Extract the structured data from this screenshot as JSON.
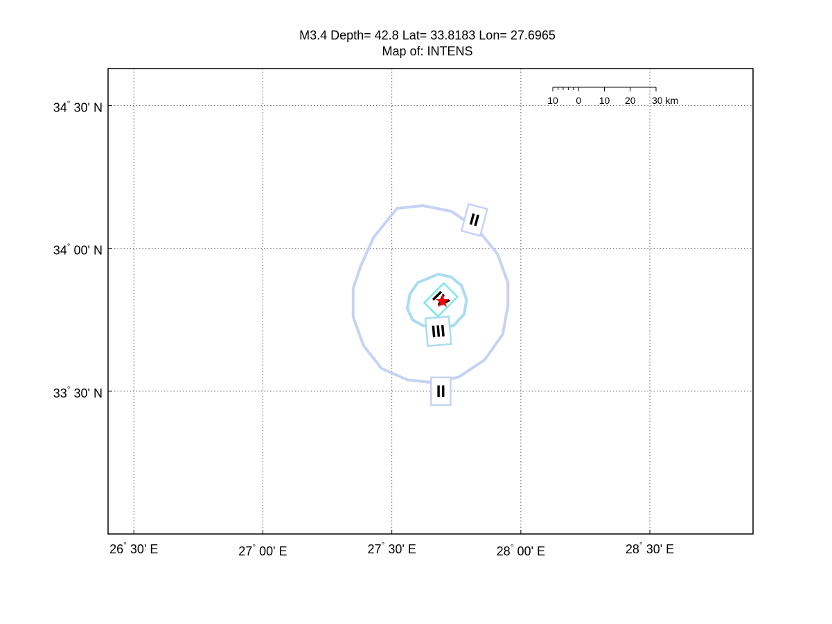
{
  "title": {
    "line1": "M3.4 Depth= 42.8 Lat= 33.8183 Lon= 27.6965",
    "line2": "Map of: INTENS"
  },
  "chart_data": {
    "type": "map",
    "event": {
      "magnitude": 3.4,
      "depth": 42.8,
      "lat": 33.8183,
      "lon": 27.6965
    },
    "xlim": [
      26.4,
      28.9
    ],
    "ylim": [
      33.0,
      34.63
    ],
    "grid": true,
    "x_ticks": [
      {
        "value": 26.5,
        "deg": "26",
        "min": "30",
        "hemi": "E"
      },
      {
        "value": 27.0,
        "deg": "27",
        "min": "00",
        "hemi": "E"
      },
      {
        "value": 27.5,
        "deg": "27",
        "min": "30",
        "hemi": "E"
      },
      {
        "value": 28.0,
        "deg": "28",
        "min": "00",
        "hemi": "E"
      },
      {
        "value": 28.5,
        "deg": "28",
        "min": "30",
        "hemi": "E"
      }
    ],
    "y_ticks": [
      {
        "value": 34.5,
        "deg": "34",
        "min": "30",
        "hemi": "N"
      },
      {
        "value": 34.0,
        "deg": "34",
        "min": "00",
        "hemi": "N"
      },
      {
        "value": 33.5,
        "deg": "33",
        "min": "30",
        "hemi": "N"
      }
    ],
    "contours": [
      {
        "intensity": "II",
        "color": "#c6d2f6",
        "points": [
          [
            27.52,
            34.14
          ],
          [
            27.62,
            34.15
          ],
          [
            27.73,
            34.13
          ],
          [
            27.83,
            34.07
          ],
          [
            27.91,
            33.98
          ],
          [
            27.95,
            33.88
          ],
          [
            27.95,
            33.8
          ],
          [
            27.93,
            33.7
          ],
          [
            27.86,
            33.61
          ],
          [
            27.76,
            33.55
          ],
          [
            27.66,
            33.53
          ],
          [
            27.56,
            33.54
          ],
          [
            27.46,
            33.58
          ],
          [
            27.39,
            33.66
          ],
          [
            27.35,
            33.76
          ],
          [
            27.35,
            33.86
          ],
          [
            27.38,
            33.94
          ],
          [
            27.43,
            34.04
          ]
        ]
      },
      {
        "intensity": "III",
        "color": "#a8dcf2",
        "points": [
          [
            27.68,
            33.91
          ],
          [
            27.73,
            33.9
          ],
          [
            27.77,
            33.87
          ],
          [
            27.79,
            33.82
          ],
          [
            27.78,
            33.77
          ],
          [
            27.74,
            33.73
          ],
          [
            27.68,
            33.72
          ],
          [
            27.62,
            33.73
          ],
          [
            27.58,
            33.75
          ],
          [
            27.56,
            33.79
          ],
          [
            27.57,
            33.84
          ],
          [
            27.6,
            33.88
          ]
        ]
      }
    ],
    "labels": [
      {
        "text": "II",
        "lon": 27.69,
        "lat": 33.5,
        "angle": 0,
        "color": "#c6d2f6"
      },
      {
        "text": "II",
        "lon": 27.82,
        "lat": 34.1,
        "angle": 15,
        "color": "#c6d2f6"
      },
      {
        "text": "III",
        "lon": 27.68,
        "lat": 33.71,
        "angle": -5,
        "color": "#a8dcf2"
      },
      {
        "text": "IV",
        "lon": 27.69,
        "lat": 33.82,
        "angle": 45,
        "color": "#7fe7ea"
      }
    ],
    "epicenter_color": "#ff0000",
    "scale_bar": {
      "ticks": [
        "10",
        "0",
        "10",
        "20",
        "30 km"
      ]
    }
  }
}
